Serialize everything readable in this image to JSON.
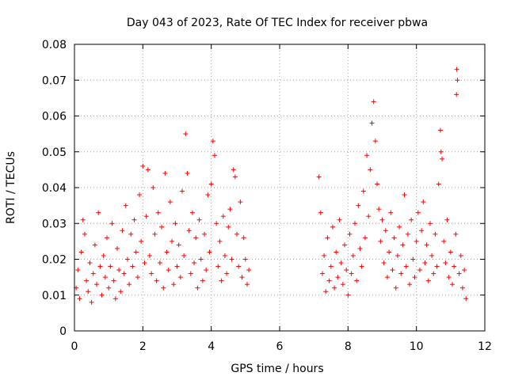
{
  "chart_data": {
    "type": "scatter",
    "title": "Day 043 of 2023, Rate Of TEC Index for receiver pbwa",
    "xlabel": "GPS time / hours",
    "ylabel": "ROTI / TECUs",
    "xlim": [
      0,
      12
    ],
    "ylim": [
      0,
      0.08
    ],
    "xticks": [
      0,
      2,
      4,
      6,
      8,
      10,
      12
    ],
    "xtick_labels": [
      "0",
      "2",
      "4",
      "6",
      "8",
      "10",
      "12"
    ],
    "yticks": [
      0,
      0.01,
      0.02,
      0.03,
      0.04,
      0.05,
      0.06,
      0.07,
      0.08
    ],
    "ytick_labels": [
      "0",
      "0.01",
      "0.02",
      "0.03",
      "0.04",
      "0.05",
      "0.06",
      "0.07",
      "0.08"
    ],
    "grid": true,
    "marker": "+",
    "color": "#ff0000",
    "series": [
      {
        "name": "ROTI",
        "points": [
          [
            0.05,
            0.012
          ],
          [
            0.1,
            0.017
          ],
          [
            0.15,
            0.009
          ],
          [
            0.2,
            0.022
          ],
          [
            0.25,
            0.031
          ],
          [
            0.3,
            0.027
          ],
          [
            0.35,
            0.014
          ],
          [
            0.4,
            0.011
          ],
          [
            0.45,
            0.019
          ],
          [
            0.5,
            0.008
          ],
          [
            0.55,
            0.016
          ],
          [
            0.6,
            0.024
          ],
          [
            0.65,
            0.013
          ],
          [
            0.7,
            0.033
          ],
          [
            0.75,
            0.018
          ],
          [
            0.8,
            0.01
          ],
          [
            0.85,
            0.021
          ],
          [
            0.9,
            0.015
          ],
          [
            0.95,
            0.026
          ],
          [
            1.0,
            0.012
          ],
          [
            1.05,
            0.018
          ],
          [
            1.1,
            0.03
          ],
          [
            1.15,
            0.014
          ],
          [
            1.2,
            0.009
          ],
          [
            1.25,
            0.023
          ],
          [
            1.3,
            0.017
          ],
          [
            1.35,
            0.011
          ],
          [
            1.4,
            0.028
          ],
          [
            1.45,
            0.016
          ],
          [
            1.5,
            0.035
          ],
          [
            1.55,
            0.02
          ],
          [
            1.6,
            0.013
          ],
          [
            1.65,
            0.027
          ],
          [
            1.7,
            0.018
          ],
          [
            1.75,
            0.031
          ],
          [
            1.8,
            0.022
          ],
          [
            1.85,
            0.015
          ],
          [
            1.9,
            0.038
          ],
          [
            1.95,
            0.025
          ],
          [
            2.0,
            0.046
          ],
          [
            2.05,
            0.019
          ],
          [
            2.1,
            0.032
          ],
          [
            2.15,
            0.045
          ],
          [
            2.2,
            0.021
          ],
          [
            2.25,
            0.016
          ],
          [
            2.3,
            0.04
          ],
          [
            2.35,
            0.027
          ],
          [
            2.4,
            0.014
          ],
          [
            2.45,
            0.033
          ],
          [
            2.5,
            0.019
          ],
          [
            2.55,
            0.029
          ],
          [
            2.6,
            0.012
          ],
          [
            2.65,
            0.044
          ],
          [
            2.7,
            0.022
          ],
          [
            2.75,
            0.017
          ],
          [
            2.8,
            0.036
          ],
          [
            2.85,
            0.025
          ],
          [
            2.9,
            0.013
          ],
          [
            2.95,
            0.03
          ],
          [
            3.0,
            0.018
          ],
          [
            3.05,
            0.024
          ],
          [
            3.1,
            0.015
          ],
          [
            3.15,
            0.039
          ],
          [
            3.2,
            0.021
          ],
          [
            3.25,
            0.055
          ],
          [
            3.3,
            0.044
          ],
          [
            3.35,
            0.028
          ],
          [
            3.4,
            0.016
          ],
          [
            3.45,
            0.033
          ],
          [
            3.5,
            0.019
          ],
          [
            3.55,
            0.026
          ],
          [
            3.6,
            0.012
          ],
          [
            3.65,
            0.031
          ],
          [
            3.7,
            0.02
          ],
          [
            3.75,
            0.014
          ],
          [
            3.8,
            0.027
          ],
          [
            3.85,
            0.017
          ],
          [
            3.9,
            0.038
          ],
          [
            3.95,
            0.022
          ],
          [
            4.0,
            0.041
          ],
          [
            4.05,
            0.053
          ],
          [
            4.1,
            0.049
          ],
          [
            4.15,
            0.03
          ],
          [
            4.2,
            0.018
          ],
          [
            4.25,
            0.025
          ],
          [
            4.3,
            0.014
          ],
          [
            4.35,
            0.032
          ],
          [
            4.4,
            0.021
          ],
          [
            4.45,
            0.016
          ],
          [
            4.5,
            0.029
          ],
          [
            4.55,
            0.034
          ],
          [
            4.6,
            0.02
          ],
          [
            4.65,
            0.045
          ],
          [
            4.7,
            0.043
          ],
          [
            4.75,
            0.027
          ],
          [
            4.8,
            0.018
          ],
          [
            4.85,
            0.036
          ],
          [
            4.9,
            0.015
          ],
          [
            4.95,
            0.026
          ],
          [
            5.0,
            0.02
          ],
          [
            5.05,
            0.013
          ],
          [
            5.1,
            0.017
          ],
          [
            7.15,
            0.043
          ],
          [
            7.2,
            0.033
          ],
          [
            7.25,
            0.016
          ],
          [
            7.3,
            0.021
          ],
          [
            7.35,
            0.011
          ],
          [
            7.4,
            0.026
          ],
          [
            7.45,
            0.014
          ],
          [
            7.5,
            0.018
          ],
          [
            7.55,
            0.029
          ],
          [
            7.6,
            0.012
          ],
          [
            7.65,
            0.022
          ],
          [
            7.7,
            0.015
          ],
          [
            7.75,
            0.031
          ],
          [
            7.8,
            0.019
          ],
          [
            7.85,
            0.013
          ],
          [
            7.9,
            0.024
          ],
          [
            7.95,
            0.017
          ],
          [
            8.0,
            0.01
          ],
          [
            8.05,
            0.027
          ],
          [
            8.1,
            0.016
          ],
          [
            8.15,
            0.021
          ],
          [
            8.2,
            0.03
          ],
          [
            8.25,
            0.014
          ],
          [
            8.3,
            0.035
          ],
          [
            8.35,
            0.023
          ],
          [
            8.4,
            0.018
          ],
          [
            8.45,
            0.039
          ],
          [
            8.5,
            0.026
          ],
          [
            8.55,
            0.049
          ],
          [
            8.6,
            0.032
          ],
          [
            8.65,
            0.045
          ],
          [
            8.7,
            0.058
          ],
          [
            8.75,
            0.064
          ],
          [
            8.8,
            0.053
          ],
          [
            8.85,
            0.041
          ],
          [
            8.9,
            0.034
          ],
          [
            8.95,
            0.025
          ],
          [
            9.0,
            0.031
          ],
          [
            9.05,
            0.019
          ],
          [
            9.1,
            0.028
          ],
          [
            9.15,
            0.015
          ],
          [
            9.2,
            0.022
          ],
          [
            9.25,
            0.033
          ],
          [
            9.3,
            0.017
          ],
          [
            9.35,
            0.026
          ],
          [
            9.4,
            0.012
          ],
          [
            9.45,
            0.021
          ],
          [
            9.5,
            0.029
          ],
          [
            9.55,
            0.016
          ],
          [
            9.6,
            0.024
          ],
          [
            9.65,
            0.038
          ],
          [
            9.7,
            0.018
          ],
          [
            9.75,
            0.027
          ],
          [
            9.8,
            0.013
          ],
          [
            9.85,
            0.031
          ],
          [
            9.9,
            0.02
          ],
          [
            9.95,
            0.015
          ],
          [
            10.0,
            0.025
          ],
          [
            10.05,
            0.033
          ],
          [
            10.1,
            0.017
          ],
          [
            10.15,
            0.028
          ],
          [
            10.2,
            0.036
          ],
          [
            10.25,
            0.019
          ],
          [
            10.3,
            0.024
          ],
          [
            10.35,
            0.014
          ],
          [
            10.4,
            0.03
          ],
          [
            10.45,
            0.021
          ],
          [
            10.5,
            0.016
          ],
          [
            10.55,
            0.027
          ],
          [
            10.6,
            0.018
          ],
          [
            10.65,
            0.041
          ],
          [
            10.7,
            0.056
          ],
          [
            10.72,
            0.05
          ],
          [
            10.75,
            0.048
          ],
          [
            10.8,
            0.025
          ],
          [
            10.85,
            0.019
          ],
          [
            10.9,
            0.031
          ],
          [
            10.95,
            0.015
          ],
          [
            11.0,
            0.022
          ],
          [
            11.05,
            0.013
          ],
          [
            11.1,
            0.018
          ],
          [
            11.15,
            0.027
          ],
          [
            11.17,
            0.066
          ],
          [
            11.18,
            0.073
          ],
          [
            11.2,
            0.07
          ],
          [
            11.25,
            0.016
          ],
          [
            11.3,
            0.021
          ],
          [
            11.35,
            0.012
          ],
          [
            11.4,
            0.017
          ],
          [
            11.45,
            0.009
          ]
        ]
      }
    ]
  }
}
